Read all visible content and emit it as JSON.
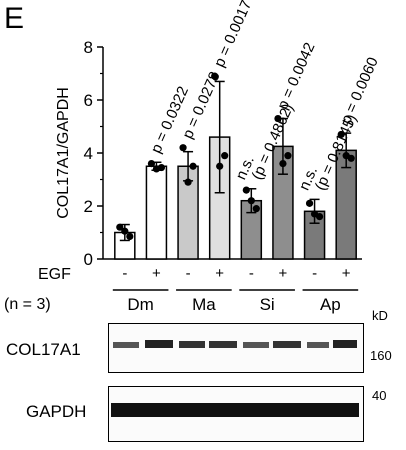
{
  "panel_letter": "E",
  "chart_data": {
    "type": "bar",
    "ylabel": "COL17A1/GAPDH",
    "ylim": [
      0,
      8
    ],
    "yticks": [
      "0",
      "2",
      "4",
      "6",
      "8"
    ],
    "categories": [
      "-",
      "+",
      "-",
      "+",
      "-",
      "+",
      "-",
      "+"
    ],
    "groups": [
      "Dm",
      "Ma",
      "Si",
      "Ap"
    ],
    "treatment_label": "EGF",
    "n_label": "(n = 3)",
    "values": [
      1.0,
      3.5,
      3.5,
      4.6,
      2.2,
      4.25,
      1.8,
      4.1
    ],
    "sd": [
      0.3,
      0.15,
      0.55,
      2.1,
      0.45,
      1.05,
      0.45,
      0.65
    ],
    "points": [
      [
        1.2,
        0.85,
        1.05
      ],
      [
        3.6,
        3.45,
        3.4
      ],
      [
        4.2,
        3.5,
        2.9
      ],
      [
        6.9,
        3.9,
        3.5
      ],
      [
        2.6,
        1.9,
        2.2
      ],
      [
        5.3,
        3.9,
        3.6
      ],
      [
        2.1,
        1.6,
        1.7
      ],
      [
        4.7,
        3.8,
        3.9
      ]
    ],
    "bar_colors": [
      "#ffffff",
      "#ffffff",
      "#c9c9c9",
      "#e0e0e0",
      "#8e8e8e",
      "#8e8e8e",
      "#7a7a7a",
      "#7a7a7a"
    ],
    "annotations": [
      [
        "p = 0.0322"
      ],
      [
        "p = 0.0278"
      ],
      [
        "p = 0.0017"
      ],
      [
        "n.s.",
        "(p = 0.4862)"
      ],
      [
        "p = 0.0042"
      ],
      [
        "n.s.",
        "(p = 0.8145)"
      ],
      [
        "p = 0.0060"
      ]
    ]
  },
  "blots": {
    "unit": "kD",
    "rows": [
      {
        "label": "COL17A1",
        "marker": "160"
      },
      {
        "label": "GAPDH",
        "marker": "40"
      }
    ]
  }
}
